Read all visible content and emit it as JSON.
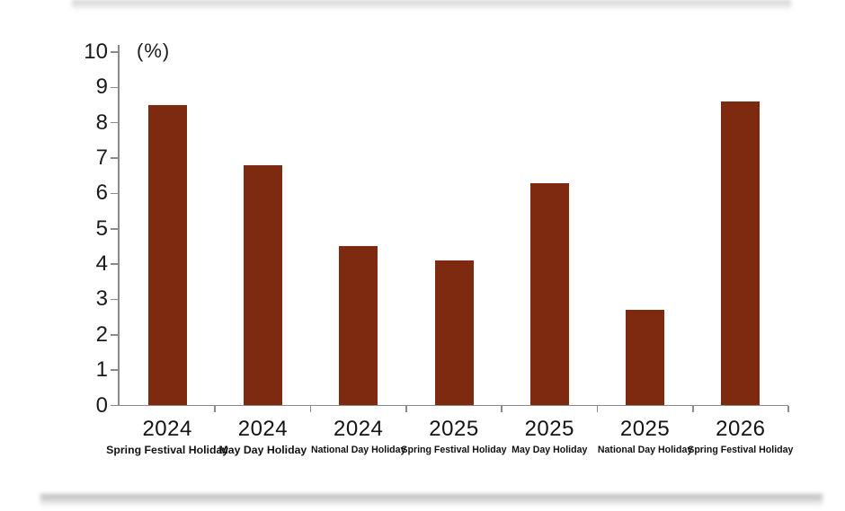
{
  "chart_data": {
    "type": "bar",
    "title": "",
    "unit_label": "(%)",
    "xlabel": "",
    "ylabel": "(%)",
    "ylim": [
      0,
      10
    ],
    "ytick_step": 1,
    "grid": false,
    "legend": null,
    "categories": [
      {
        "year": "2024",
        "holiday": "Spring Festival Holiday"
      },
      {
        "year": "2024",
        "holiday": "May Day Holiday"
      },
      {
        "year": "2024",
        "holiday": "National Day Holiday"
      },
      {
        "year": "2025",
        "holiday": "Spring Festival Holiday"
      },
      {
        "year": "2025",
        "holiday": "May Day Holiday"
      },
      {
        "year": "2025",
        "holiday": "National Day Holiday"
      },
      {
        "year": "2026",
        "holiday": "Spring Festival Holiday"
      }
    ],
    "values": [
      8.5,
      6.8,
      4.5,
      4.1,
      6.3,
      2.7,
      8.6
    ],
    "bar_color": "#7E2A11",
    "axis_color": "#8A8A8A",
    "text_color": "#1A1A1A"
  }
}
